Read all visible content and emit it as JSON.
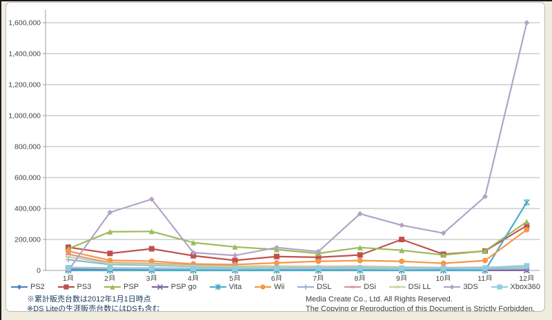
{
  "page": {
    "notes": [
      "※累計販売台数は2012年1月1日時点",
      "※DS Liteの生涯販売台数にはDSも含む"
    ],
    "copyright": [
      "Media Create Co., Ltd.  All Rights Reserved.",
      "The Copying or Reproduction of this Document  is Strictly Forbidden."
    ]
  },
  "chart_data": {
    "type": "line",
    "title": "",
    "xlabel": "",
    "ylabel": "",
    "categories": [
      "1月",
      "2月",
      "3月",
      "4月",
      "5月",
      "6月",
      "7月",
      "8月",
      "9月",
      "10月",
      "11月",
      "12月"
    ],
    "ylim": [
      0,
      1600000
    ],
    "y_tick_step": 200000,
    "y_tick_labels": [
      "0",
      "200,000",
      "400,000",
      "600,000",
      "800,000",
      "1,000,000",
      "1,200,000",
      "1,400,000",
      "1,600,000"
    ],
    "grid": true,
    "legend_position": "bottom",
    "axis_color": "#9c9c9c",
    "grid_color": "#b3b3b3",
    "label_color": "#3f3f3f",
    "series": [
      {
        "name": "PS2",
        "color": "#4F81BD",
        "marker": "diamond",
        "values": [
          6000,
          5000,
          5000,
          4000,
          3000,
          3000,
          3000,
          3000,
          2000,
          2000,
          2000,
          3000
        ]
      },
      {
        "name": "PS3",
        "color": "#C0504D",
        "marker": "square",
        "values": [
          150000,
          110000,
          140000,
          95000,
          65000,
          90000,
          85000,
          100000,
          200000,
          105000,
          125000,
          290000
        ]
      },
      {
        "name": "PSP",
        "color": "#9BBB59",
        "marker": "triangle",
        "values": [
          140000,
          250000,
          252000,
          180000,
          152000,
          135000,
          110000,
          148000,
          130000,
          100000,
          126000,
          315000
        ]
      },
      {
        "name": "PSP go",
        "color": "#8064A2",
        "marker": "x",
        "values": [
          8000,
          5000,
          4000,
          3000,
          2000,
          2000,
          1000,
          1000,
          1000,
          1000,
          500,
          500
        ]
      },
      {
        "name": "Vita",
        "color": "#4BACC6",
        "marker": "asterisk",
        "values": [
          0,
          0,
          0,
          0,
          0,
          0,
          0,
          0,
          0,
          0,
          0,
          440000
        ]
      },
      {
        "name": "Wii",
        "color": "#F79646",
        "marker": "circle",
        "values": [
          125000,
          65000,
          60000,
          42000,
          38000,
          49000,
          59000,
          64000,
          59000,
          46000,
          64000,
          263000
        ]
      },
      {
        "name": "DSL",
        "color": "#95B3D7",
        "marker": "plus",
        "values": [
          70000,
          38000,
          33000,
          26000,
          21000,
          20000,
          18000,
          19000,
          15000,
          12000,
          13000,
          15000
        ]
      },
      {
        "name": "DSi",
        "color": "#D99694",
        "marker": "dash",
        "values": [
          105000,
          50000,
          45000,
          35000,
          28000,
          27000,
          25000,
          27000,
          22000,
          18000,
          20000,
          25000
        ]
      },
      {
        "name": "DSi LL",
        "color": "#C3D69B",
        "marker": "dash",
        "values": [
          88000,
          45000,
          40000,
          30000,
          25000,
          24000,
          22000,
          24000,
          20000,
          16000,
          18000,
          22000
        ]
      },
      {
        "name": "3DS",
        "color": "#B3A2C7",
        "marker": "diamond",
        "values": [
          0,
          375000,
          460000,
          115000,
          97000,
          148000,
          122000,
          366000,
          292000,
          241000,
          477000,
          1600000
        ]
      },
      {
        "name": "Xbox360",
        "color": "#92CDDC",
        "marker": "square",
        "values": [
          18000,
          15000,
          14000,
          13000,
          12000,
          14000,
          15000,
          16000,
          15000,
          14000,
          16000,
          30000
        ]
      }
    ]
  }
}
